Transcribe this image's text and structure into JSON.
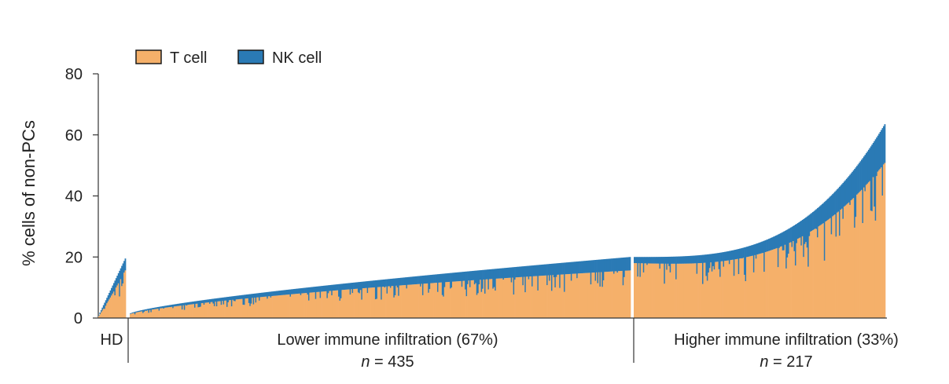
{
  "chart_data": {
    "type": "bar",
    "stacked": true,
    "ylabel": "% cells of non-PCs",
    "xlabel": "",
    "ylim": [
      0,
      80
    ],
    "yticks": [
      0,
      20,
      40,
      60,
      80
    ],
    "grid": false,
    "legend_position": "top-left",
    "legend": [
      {
        "name": "T cell",
        "color": "#F5B06A"
      },
      {
        "name": "NK cell",
        "color": "#2A7AB5"
      }
    ],
    "groups": [
      {
        "label": "HD",
        "n_label": "",
        "count": 24,
        "total_start": 1.0,
        "total_end": 19.5,
        "curve": 1.0,
        "nk_frac_start": 0.3,
        "nk_frac_end": 0.2
      },
      {
        "label": "Lower immune infiltration (67%)",
        "n_prefix": "n",
        "n_value": " = 435",
        "count": 435,
        "total_start": 1.5,
        "total_end": 20.0,
        "curve": 0.75,
        "nk_frac_start": 0.15,
        "nk_frac_end": 0.22
      },
      {
        "label": "Higher immune infiltration (33%)",
        "n_prefix": "n",
        "n_value": " = 217",
        "count": 217,
        "total_start": 20.0,
        "total_end": 63.5,
        "curve": 3.2,
        "nk_frac_start": 0.1,
        "nk_frac_end": 0.2
      }
    ],
    "note_series": [
      "T cell",
      "NK cell"
    ]
  },
  "colors": {
    "t_cell": "#F5B06A",
    "nk_cell": "#2A7AB5",
    "axis": "#333333"
  }
}
